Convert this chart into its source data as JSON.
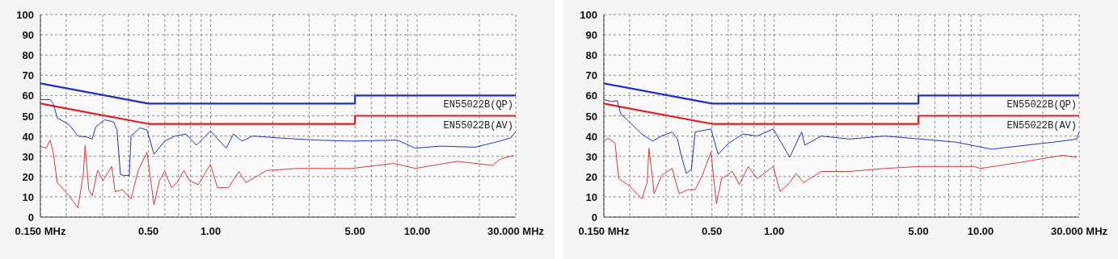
{
  "chart_data": [
    {
      "type": "line",
      "log": "x",
      "grid": true,
      "xlim": [
        0.15,
        30
      ],
      "ylim": [
        0,
        100
      ],
      "yticks": [
        0,
        10,
        20,
        30,
        40,
        50,
        60,
        70,
        80,
        90,
        100
      ],
      "xticks": [
        {
          "value": 0.15,
          "label": "0.150 MHz"
        },
        {
          "value": 0.2,
          "label": null
        },
        {
          "value": 0.3,
          "label": null
        },
        {
          "value": 0.4,
          "label": null
        },
        {
          "value": 0.5,
          "label": "0.50"
        },
        {
          "value": 0.6,
          "label": null
        },
        {
          "value": 0.7,
          "label": null
        },
        {
          "value": 0.8,
          "label": null
        },
        {
          "value": 0.9,
          "label": null
        },
        {
          "value": 1,
          "label": "1.00"
        },
        {
          "value": 2,
          "label": null
        },
        {
          "value": 3,
          "label": null
        },
        {
          "value": 4,
          "label": null
        },
        {
          "value": 5,
          "label": "5.00"
        },
        {
          "value": 6,
          "label": null
        },
        {
          "value": 7,
          "label": null
        },
        {
          "value": 8,
          "label": null
        },
        {
          "value": 9,
          "label": null
        },
        {
          "value": 10,
          "label": "10.00"
        },
        {
          "value": 20,
          "label": null
        },
        {
          "value": 30,
          "label": "30.000 MHz"
        }
      ],
      "series": [
        {
          "name": "EN55022B(QP)",
          "color": "#1f2fc4",
          "x": [
            0.15,
            0.5,
            5,
            5,
            30
          ],
          "values": [
            66,
            56,
            56,
            60,
            60
          ]
        },
        {
          "name": "EN55022B(AV)",
          "color": "#e01e1e",
          "x": [
            0.15,
            0.5,
            5,
            5,
            30
          ],
          "values": [
            56,
            46,
            46,
            50,
            50
          ]
        },
        {
          "color": "#2233c8",
          "x": [
            0.15,
            0.167,
            0.173,
            0.181,
            0.207,
            0.228,
            0.252,
            0.267,
            0.278,
            0.307,
            0.339,
            0.352,
            0.366,
            0.381,
            0.404,
            0.412,
            0.455,
            0.492,
            0.532,
            0.599,
            0.674,
            0.759,
            0.853,
            0.998,
            1.19,
            1.29,
            1.42,
            1.6,
            2.19,
            3.25,
            4.81,
            8.03,
            9.77,
            12.9,
            19.1,
            25.1,
            28.2,
            30
          ],
          "values": [
            58,
            58,
            56,
            49,
            45.5,
            40,
            39.5,
            38.5,
            44.5,
            48,
            47,
            43,
            21,
            20.5,
            20.5,
            40,
            44,
            43,
            31,
            37.5,
            40,
            41,
            35.5,
            42.5,
            34,
            41,
            37.5,
            40,
            39,
            38,
            37.5,
            38,
            34,
            35,
            34.5,
            37.5,
            39,
            42
          ]
        },
        {
          "color": "#d83a3a",
          "x": [
            0.15,
            0.16,
            0.167,
            0.173,
            0.181,
            0.207,
            0.228,
            0.242,
            0.247,
            0.257,
            0.267,
            0.284,
            0.301,
            0.332,
            0.345,
            0.374,
            0.412,
            0.446,
            0.492,
            0.532,
            0.565,
            0.599,
            0.647,
            0.687,
            0.743,
            0.789,
            0.871,
            0.998,
            1.08,
            1.22,
            1.37,
            1.48,
            1.87,
            2.67,
            4.81,
            7.72,
            9.77,
            15.6,
            23.2,
            25.1,
            29.4
          ],
          "values": [
            35,
            34,
            38,
            32,
            17,
            10.5,
            4.5,
            21.5,
            35.5,
            13.5,
            10.5,
            23,
            18,
            25,
            12.5,
            13.5,
            9,
            23,
            32,
            6,
            18,
            22.5,
            14.5,
            17,
            23,
            18,
            16,
            26,
            14.5,
            14.5,
            22.5,
            17,
            23,
            24,
            24,
            26.5,
            24,
            27.5,
            25.5,
            28.5,
            30.5
          ]
        }
      ]
    },
    {
      "type": "line",
      "log": "x",
      "grid": true,
      "xlim": [
        0.15,
        30
      ],
      "ylim": [
        0,
        100
      ],
      "yticks": [
        0,
        10,
        20,
        30,
        40,
        50,
        60,
        70,
        80,
        90,
        100
      ],
      "xticks": [
        {
          "value": 0.15,
          "label": "0.150 MHz"
        },
        {
          "value": 0.2,
          "label": null
        },
        {
          "value": 0.3,
          "label": null
        },
        {
          "value": 0.4,
          "label": null
        },
        {
          "value": 0.5,
          "label": "0.50"
        },
        {
          "value": 0.6,
          "label": null
        },
        {
          "value": 0.7,
          "label": null
        },
        {
          "value": 0.8,
          "label": null
        },
        {
          "value": 0.9,
          "label": null
        },
        {
          "value": 1,
          "label": "1.00"
        },
        {
          "value": 2,
          "label": null
        },
        {
          "value": 3,
          "label": null
        },
        {
          "value": 4,
          "label": null
        },
        {
          "value": 5,
          "label": "5.00"
        },
        {
          "value": 6,
          "label": null
        },
        {
          "value": 7,
          "label": null
        },
        {
          "value": 8,
          "label": null
        },
        {
          "value": 9,
          "label": null
        },
        {
          "value": 10,
          "label": "10.00"
        },
        {
          "value": 20,
          "label": null
        },
        {
          "value": 30,
          "label": "30.000 MHz"
        }
      ],
      "series": [
        {
          "name": "EN55022B(QP)",
          "color": "#1f2fc4",
          "x": [
            0.15,
            0.5,
            5,
            5,
            30
          ],
          "values": [
            66,
            56,
            56,
            60,
            60
          ]
        },
        {
          "name": "EN55022B(AV)",
          "color": "#e01e1e",
          "x": [
            0.15,
            0.5,
            5,
            5,
            30
          ],
          "values": [
            56,
            46,
            46,
            50,
            50
          ]
        },
        {
          "color": "#2233c8",
          "x": [
            0.15,
            0.163,
            0.174,
            0.181,
            0.199,
            0.229,
            0.258,
            0.285,
            0.321,
            0.341,
            0.354,
            0.376,
            0.398,
            0.415,
            0.495,
            0.536,
            0.604,
            0.708,
            0.829,
            0.991,
            1.19,
            1.36,
            1.41,
            1.69,
            2.32,
            3.44,
            5.12,
            7.58,
            11.3,
            16.7,
            24.9,
            29.2,
            30
          ],
          "values": [
            58,
            57,
            57.5,
            51,
            47,
            41,
            37.5,
            40,
            42,
            38.5,
            31,
            21.5,
            23.5,
            42,
            43.5,
            31,
            36.5,
            41,
            40,
            43.5,
            29.5,
            42,
            35.5,
            40,
            38.5,
            40,
            38.5,
            37,
            33.5,
            35.5,
            37.5,
            38.5,
            42
          ]
        },
        {
          "color": "#d83a3a",
          "x": [
            0.15,
            0.157,
            0.17,
            0.177,
            0.199,
            0.229,
            0.243,
            0.248,
            0.263,
            0.285,
            0.321,
            0.347,
            0.383,
            0.415,
            0.449,
            0.495,
            0.526,
            0.557,
            0.628,
            0.679,
            0.75,
            0.829,
            0.991,
            1.07,
            1.19,
            1.28,
            1.39,
            1.69,
            2.32,
            3.44,
            5.12,
            9.25,
            10,
            16.7,
            24.9,
            29.2
          ],
          "values": [
            37.5,
            39,
            36.5,
            19,
            15.5,
            9,
            17,
            34,
            11.5,
            20.5,
            24,
            11.5,
            13.5,
            13.5,
            20.5,
            32,
            6.5,
            19,
            22.5,
            16,
            25,
            19,
            25,
            12.5,
            17,
            21.5,
            17,
            22.5,
            22.5,
            24,
            25,
            25,
            24,
            27.5,
            30.5,
            29.5
          ]
        }
      ]
    }
  ]
}
